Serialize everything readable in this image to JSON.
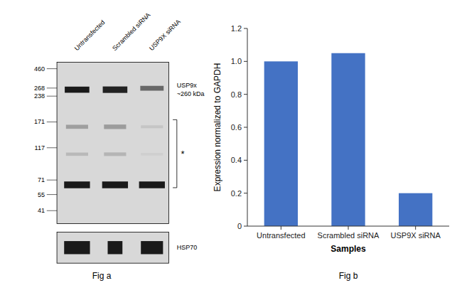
{
  "chart_data": {
    "type": "bar",
    "categories": [
      "Untransfected",
      "Scrambled siRNA",
      "USP9X siRNA"
    ],
    "values": [
      1.0,
      1.05,
      0.2
    ],
    "color": "#4472C4",
    "xlabel": "Samples",
    "ylabel": "Expression normalized to GAPDH",
    "ylim": [
      0,
      1.2
    ],
    "yticks": [
      0,
      0.2,
      0.4,
      0.6,
      0.8,
      {
        "value": 1.0,
        "label": "1.0"
      },
      1.2
    ],
    "grid": false,
    "annotations": [
      "Fig b"
    ]
  },
  "blot": {
    "title": "Fig a",
    "categories": [
      "Untransfected",
      "Scrambled siRNA",
      "USP9X siRNA"
    ],
    "marker_labels": [
      "460",
      "268",
      "238",
      "171",
      "117",
      "71",
      "55",
      "41"
    ],
    "annotations": [
      "USP9x\n~260 kDa",
      "*",
      "HSP70"
    ]
  }
}
